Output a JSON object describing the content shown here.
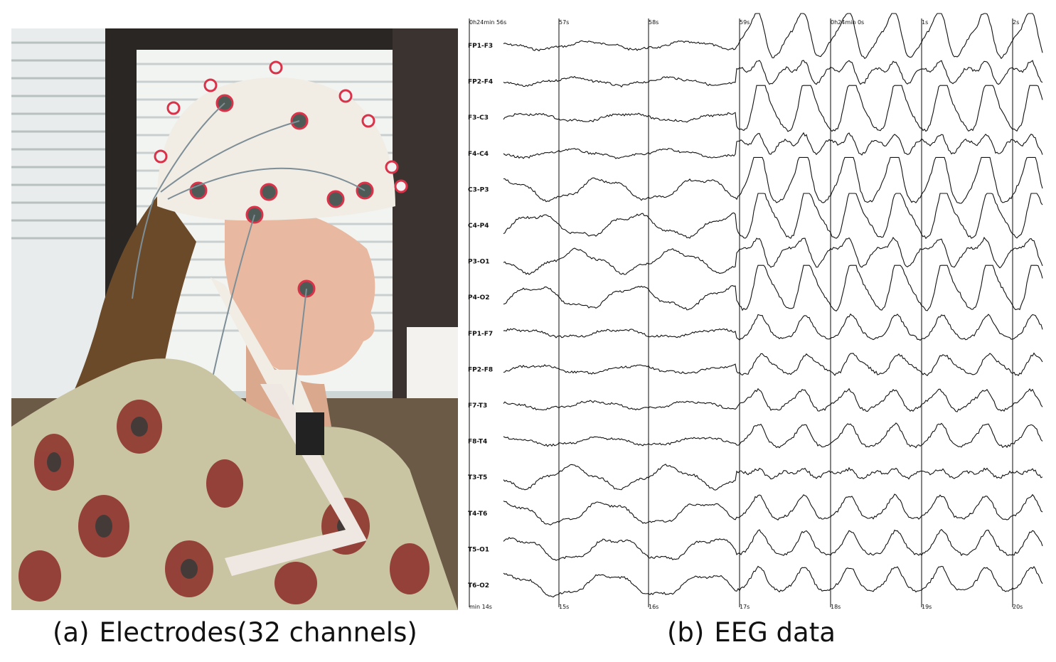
{
  "figure": {
    "captions": [
      {
        "tag": "(a)",
        "text": "Electrodes(32 channels)"
      },
      {
        "tag": "(b)",
        "text": "EEG data"
      }
    ]
  },
  "eeg": {
    "channels": [
      "FP1-F3",
      "FP2-F4",
      "F3-C3",
      "F4-C4",
      "C3-P3",
      "C4-P4",
      "P3-O1",
      "P4-O2",
      "FP1-F7",
      "FP2-F8",
      "F7-T3",
      "F8-T4",
      "T3-T5",
      "T4-T6",
      "T5-O1",
      "T6-O2"
    ],
    "top_time_labels": [
      "0h24min 56s",
      "57s",
      "58s",
      "59s",
      "0h24min 0s",
      "1s",
      "2s"
    ],
    "bottom_time_labels": [
      "min 14s",
      "15s",
      "16s",
      "17s",
      "18s",
      "19s",
      "20s"
    ]
  },
  "photo": {
    "description_icon": "person-wearing-eeg-cap"
  }
}
